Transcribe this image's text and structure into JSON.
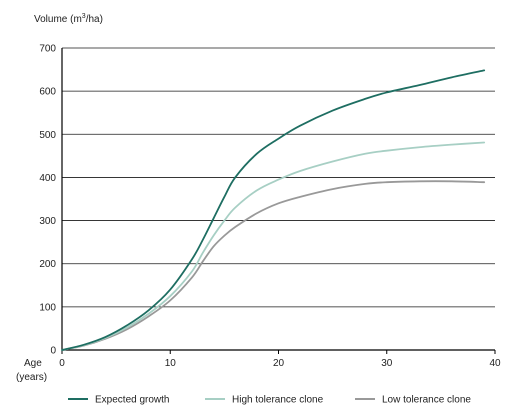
{
  "chart_data": {
    "type": "line",
    "title": "",
    "ylabel": {
      "prefix": "Volume (m",
      "superscript": "3",
      "suffix": "/ha)"
    },
    "xlabel": {
      "line1": "Age",
      "line2": "(years)"
    },
    "xlim": [
      0,
      40
    ],
    "ylim": [
      0,
      700
    ],
    "x_ticks": [
      0,
      10,
      20,
      30,
      40
    ],
    "y_ticks": [
      0,
      100,
      200,
      300,
      400,
      500,
      600,
      700
    ],
    "grid": "horizontal",
    "legend_position": "bottom",
    "x": [
      0,
      2,
      4,
      6,
      8,
      10,
      12,
      13,
      14,
      15,
      16,
      18,
      20,
      22,
      25,
      28,
      30,
      33,
      36,
      39
    ],
    "series": [
      {
        "name": "Expected growth",
        "color": "#1e6e62",
        "values": [
          0,
          12,
          30,
          57,
          92,
          140,
          210,
          255,
          305,
          355,
          400,
          455,
          490,
          520,
          555,
          582,
          597,
          614,
          632,
          648
        ]
      },
      {
        "name": "High tolerance clone",
        "color": "#a7cfc4",
        "values": [
          0,
          11,
          28,
          52,
          84,
          125,
          182,
          225,
          265,
          300,
          330,
          370,
          395,
          415,
          437,
          455,
          462,
          470,
          476,
          481
        ]
      },
      {
        "name": "Low tolerance clone",
        "color": "#999999",
        "values": [
          0,
          10,
          26,
          48,
          78,
          115,
          168,
          205,
          240,
          265,
          285,
          317,
          340,
          355,
          373,
          385,
          389,
          391,
          391,
          389
        ]
      }
    ]
  }
}
